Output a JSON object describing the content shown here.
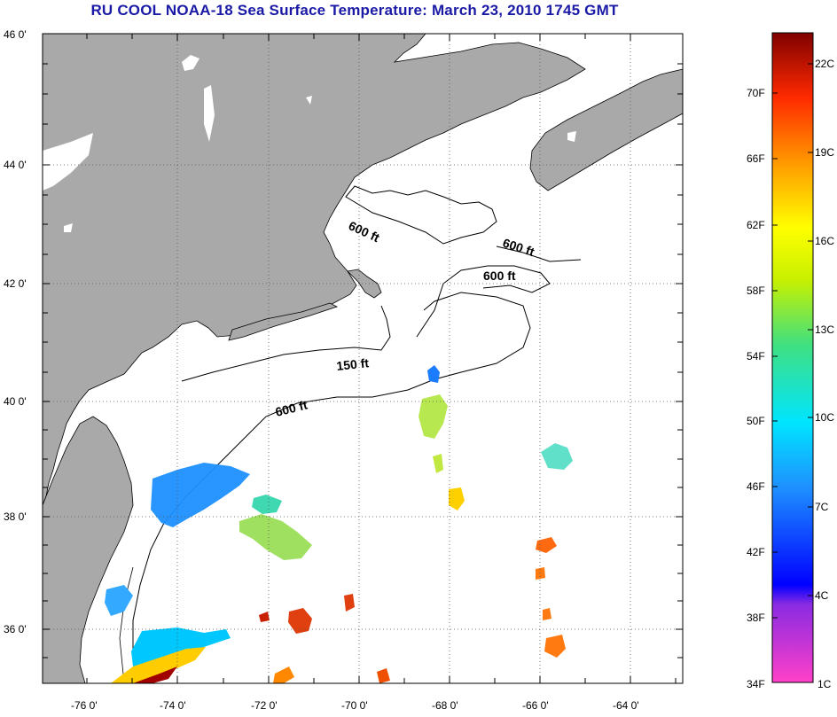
{
  "title": "RU COOL  NOAA-18  Sea Surface Temperature:  March 23, 2010 1745 GMT",
  "map": {
    "lat_labels": [
      "46 0'",
      "44 0'",
      "42 0'",
      "40 0'",
      "38 0'",
      "36 0'"
    ],
    "lon_labels": [
      "-76 0'",
      "-74 0'",
      "-72 0'",
      "-70 0'",
      "-68 0'",
      "-66 0'",
      "-64 0'"
    ],
    "contour_labels": [
      "600 ft",
      "600 ft",
      "600 ft",
      "150 ft",
      "600 ft"
    ],
    "colors": {
      "land": "#a9a9a9",
      "water": "#ffffff",
      "grid": "#555555",
      "coast": "#000000"
    }
  },
  "colorbar": {
    "fahrenheit_labels": [
      "70F",
      "66F",
      "62F",
      "58F",
      "54F",
      "50F",
      "46F",
      "42F",
      "38F",
      "34F"
    ],
    "celsius_labels": [
      "22C",
      "19C",
      "16C",
      "13C",
      "10C",
      "7C",
      "4C",
      "1C"
    ]
  }
}
